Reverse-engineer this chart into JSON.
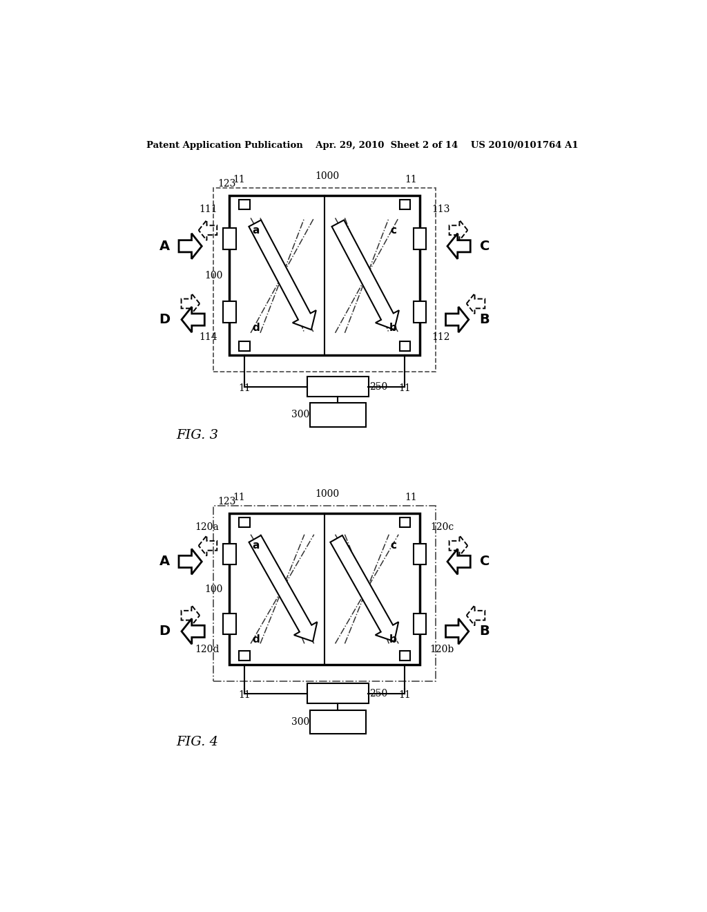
{
  "bg_color": "#ffffff",
  "header_text": "Patent Application Publication    Apr. 29, 2010  Sheet 2 of 14    US 2010/0101764 A1",
  "fig3_label": "FIG. 3",
  "fig4_label": "FIG. 4",
  "text_color": "#000000",
  "line_color": "#000000",
  "dashed_color": "#555555"
}
